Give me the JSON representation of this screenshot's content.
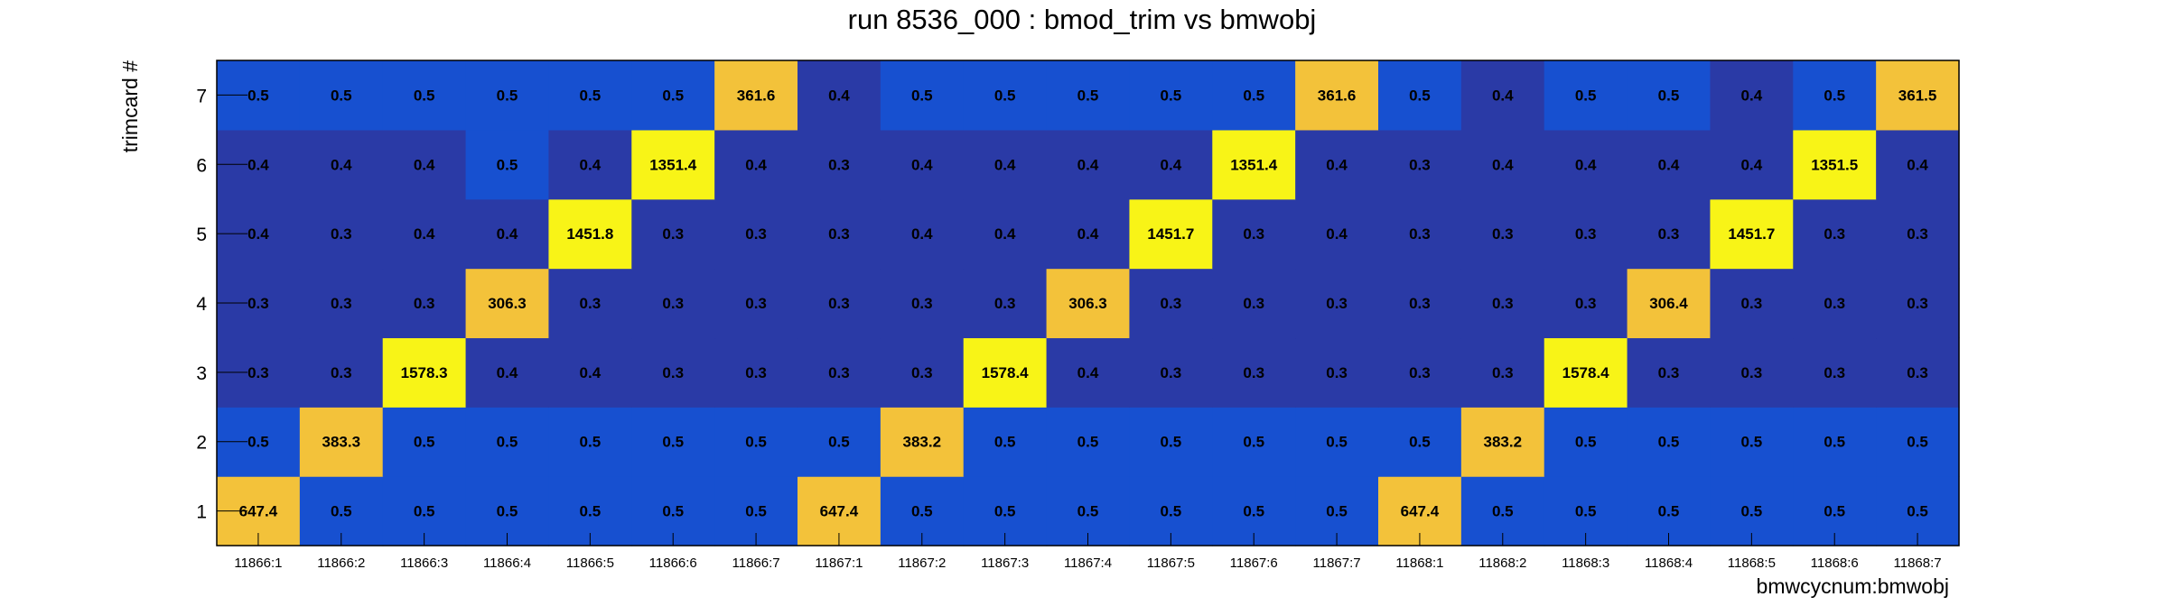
{
  "chart_data": {
    "type": "heatmap",
    "title": "run 8536_000 : bmod_trim vs bmwobj",
    "xlabel": "bmwcycnum:bmwobj",
    "ylabel": "trimcard #",
    "x_categories": [
      "11866:1",
      "11866:2",
      "11866:3",
      "11866:4",
      "11866:5",
      "11866:6",
      "11866:7",
      "11867:1",
      "11867:2",
      "11867:3",
      "11867:4",
      "11867:5",
      "11867:6",
      "11867:7",
      "11868:1",
      "11868:2",
      "11868:3",
      "11868:4",
      "11868:5",
      "11868:6",
      "11868:7"
    ],
    "y_categories": [
      "1",
      "2",
      "3",
      "4",
      "5",
      "6",
      "7"
    ],
    "values": [
      [
        "647.4",
        "0.5",
        "0.5",
        "0.5",
        "0.5",
        "0.5",
        "0.5",
        "647.4",
        "0.5",
        "0.5",
        "0.5",
        "0.5",
        "0.5",
        "0.5",
        "647.4",
        "0.5",
        "0.5",
        "0.5",
        "0.5",
        "0.5",
        "0.5"
      ],
      [
        "0.5",
        "383.3",
        "0.5",
        "0.5",
        "0.5",
        "0.5",
        "0.5",
        "0.5",
        "383.2",
        "0.5",
        "0.5",
        "0.5",
        "0.5",
        "0.5",
        "0.5",
        "383.2",
        "0.5",
        "0.5",
        "0.5",
        "0.5",
        "0.5"
      ],
      [
        "0.3",
        "0.3",
        "1578.3",
        "0.4",
        "0.4",
        "0.3",
        "0.3",
        "0.3",
        "0.3",
        "1578.4",
        "0.4",
        "0.3",
        "0.3",
        "0.3",
        "0.3",
        "0.3",
        "1578.4",
        "0.3",
        "0.3",
        "0.3",
        "0.3"
      ],
      [
        "0.3",
        "0.3",
        "0.3",
        "306.3",
        "0.3",
        "0.3",
        "0.3",
        "0.3",
        "0.3",
        "0.3",
        "306.3",
        "0.3",
        "0.3",
        "0.3",
        "0.3",
        "0.3",
        "0.3",
        "306.4",
        "0.3",
        "0.3",
        "0.3"
      ],
      [
        "0.4",
        "0.3",
        "0.4",
        "0.4",
        "1451.8",
        "0.3",
        "0.3",
        "0.3",
        "0.4",
        "0.4",
        "0.4",
        "1451.7",
        "0.3",
        "0.4",
        "0.3",
        "0.3",
        "0.3",
        "0.3",
        "1451.7",
        "0.3",
        "0.3"
      ],
      [
        "0.4",
        "0.4",
        "0.4",
        "0.5",
        "0.4",
        "1351.4",
        "0.4",
        "0.3",
        "0.4",
        "0.4",
        "0.4",
        "0.4",
        "1351.4",
        "0.4",
        "0.3",
        "0.4",
        "0.4",
        "0.4",
        "0.4",
        "1351.5",
        "0.4"
      ],
      [
        "0.5",
        "0.5",
        "0.5",
        "0.5",
        "0.5",
        "0.5",
        "361.6",
        "0.4",
        "0.5",
        "0.5",
        "0.5",
        "0.5",
        "0.5",
        "361.6",
        "0.5",
        "0.4",
        "0.5",
        "0.5",
        "0.4",
        "0.5",
        "361.5"
      ]
    ],
    "colors": {
      "low": "#2a3aa6",
      "mid": "#1750d0",
      "high_orange": "#f3c23a",
      "high_yellow": "#f8f417"
    }
  }
}
